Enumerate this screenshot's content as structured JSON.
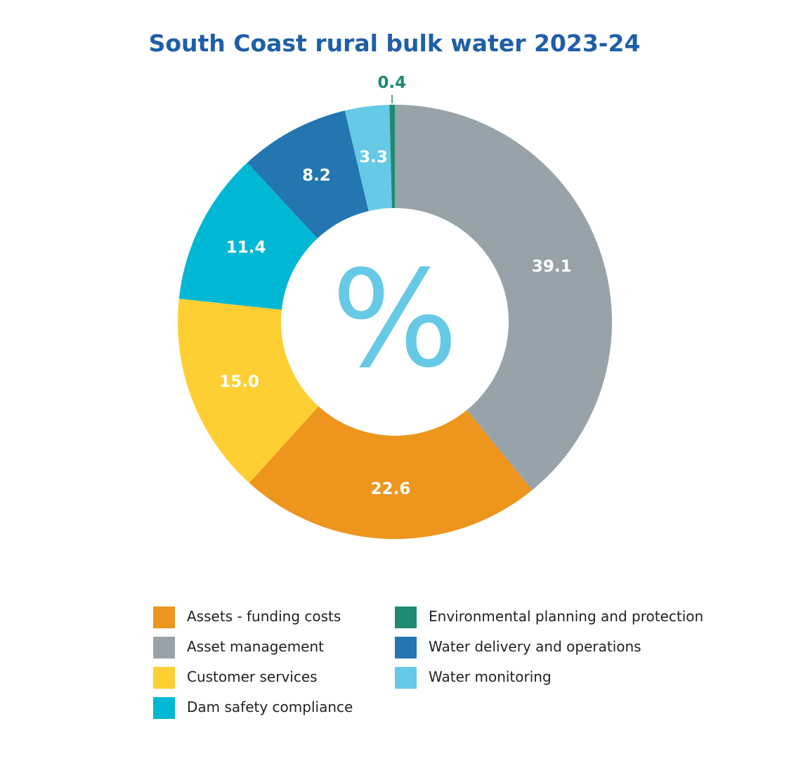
{
  "chart_data": {
    "type": "pie",
    "variant": "donut",
    "title": "South Coast rural bulk water 2023-24",
    "center_symbol": "%",
    "center_symbol_color": "#66c9e6",
    "slices": [
      {
        "label": "Asset management",
        "value": 39.1,
        "value_label": "39.1",
        "color": "#97a3a9",
        "label_color": "#ffffff"
      },
      {
        "label": "Assets - funding costs",
        "value": 22.6,
        "value_label": "22.6",
        "color": "#ee951d",
        "label_color": "#ffffff"
      },
      {
        "label": "Customer services",
        "value": 15.0,
        "value_label": "15.0",
        "color": "#fecf33",
        "label_color": "#ffffff"
      },
      {
        "label": "Dam safety compliance",
        "value": 11.4,
        "value_label": "11.4",
        "color": "#00b8d4",
        "label_color": "#ffffff"
      },
      {
        "label": "Water delivery and operations",
        "value": 8.2,
        "value_label": "8.2",
        "color": "#2376b0",
        "label_color": "#ffffff"
      },
      {
        "label": "Water monitoring",
        "value": 3.3,
        "value_label": "3.3",
        "color": "#66c9e6",
        "label_color": "#ffffff"
      },
      {
        "label": "Environmental planning and protection",
        "value": 0.4,
        "value_label": "0.4",
        "color": "#1f8a70",
        "label_color": "#1f8a70",
        "label_outside": true
      }
    ],
    "legend": {
      "placement": "bottom",
      "columns": [
        [
          "Assets - funding costs",
          "Asset management",
          "Customer services",
          "Dam safety compliance"
        ],
        [
          "Environmental planning and protection",
          "Water delivery and operations",
          "Water monitoring"
        ]
      ]
    }
  }
}
